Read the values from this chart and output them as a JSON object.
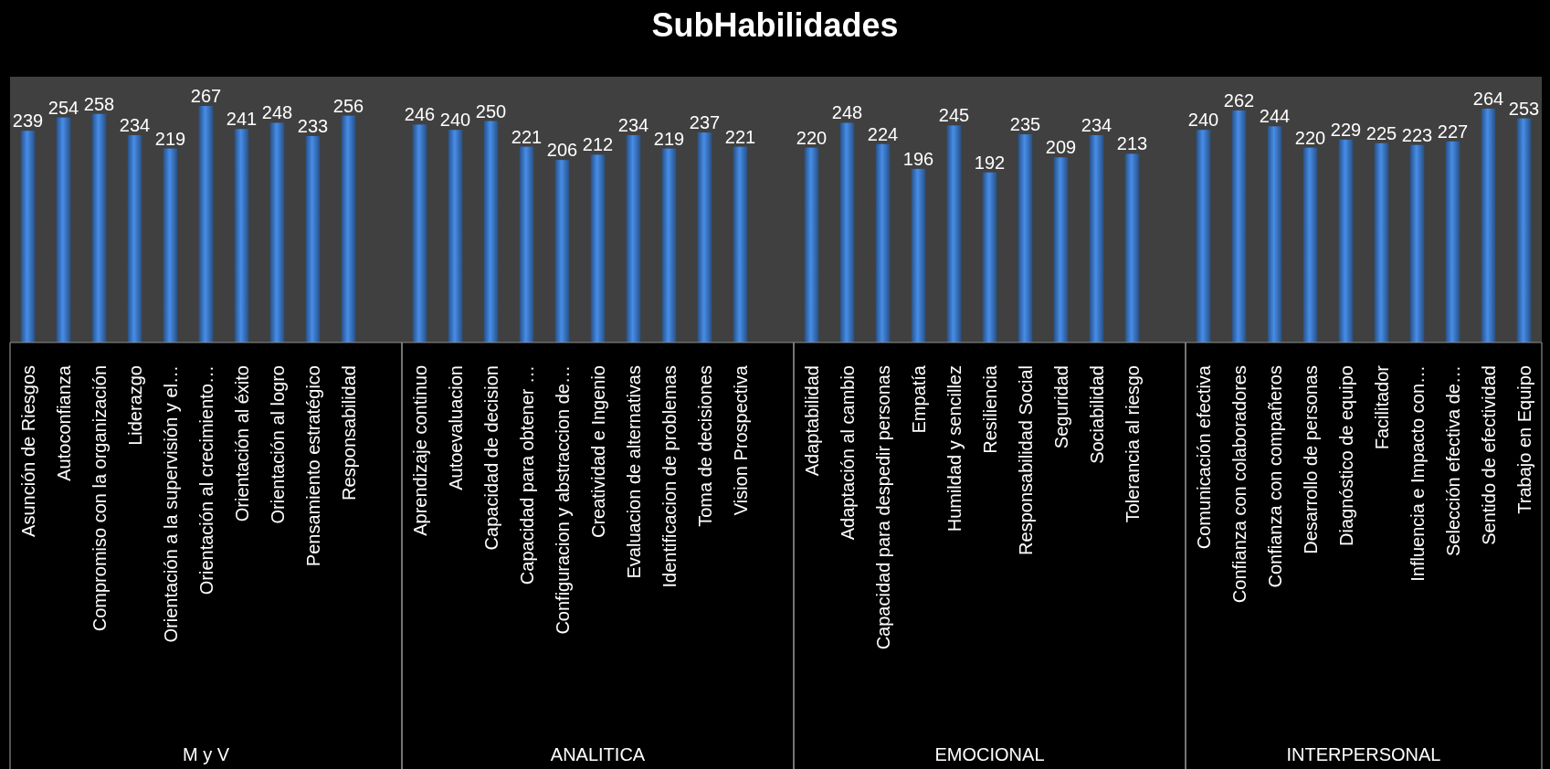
{
  "chart_data": {
    "type": "bar",
    "title": "SubHabilidades",
    "categories": [
      "Asunción de Riesgos",
      "Autoconfianza",
      "Compromiso con la organización",
      "Liderazgo",
      "Orientación a la supervisión y el…",
      "Orientación al crecimiento…",
      "Orientación al éxito",
      "Orientación al logro",
      "Pensamiento estratégico",
      "Responsabilidad",
      null,
      "Aprendizaje continuo",
      "Autoevaluacion",
      "Capacidad de decision",
      "Capacidad para obtener …",
      "Configuracion y abstraccion de…",
      "Creatividad e Ingenio",
      "Evaluacion de alternativas",
      "Identificacion de problemas",
      "Toma de decisiones",
      "Vision Prospectiva",
      null,
      "Adaptabilidad",
      "Adaptación al cambio",
      "Capacidad para despedir personas",
      "Empatía",
      "Humildad y sencillez",
      "Resiliencia",
      "Responsabilidad Social",
      "Seguridad",
      "Sociabilidad",
      "Tolerancia al riesgo",
      null,
      "Comunicación efectiva",
      "Confianza con colaboradores",
      "Confianza con compañeros",
      "Desarrollo de personas",
      "Diagnóstico de equipo",
      "Facilitador",
      "Influencia e Impacto con…",
      "Selección efectiva de…",
      "Sentido de efectividad",
      "Trabajo en Equipo"
    ],
    "values": [
      239,
      254,
      258,
      234,
      219,
      267,
      241,
      248,
      233,
      256,
      null,
      246,
      240,
      250,
      221,
      206,
      212,
      234,
      219,
      237,
      221,
      null,
      220,
      248,
      224,
      196,
      245,
      192,
      235,
      209,
      234,
      213,
      null,
      240,
      262,
      244,
      220,
      229,
      225,
      223,
      227,
      264,
      253
    ],
    "color": "#3b76c3",
    "ylim": [
      0,
      300
    ],
    "tick_labels": "x",
    "data_labels": true,
    "annotations": [
      "M y V",
      "ANALITICA",
      "EMOCIONAL",
      "INTERPERSONAL"
    ]
  }
}
